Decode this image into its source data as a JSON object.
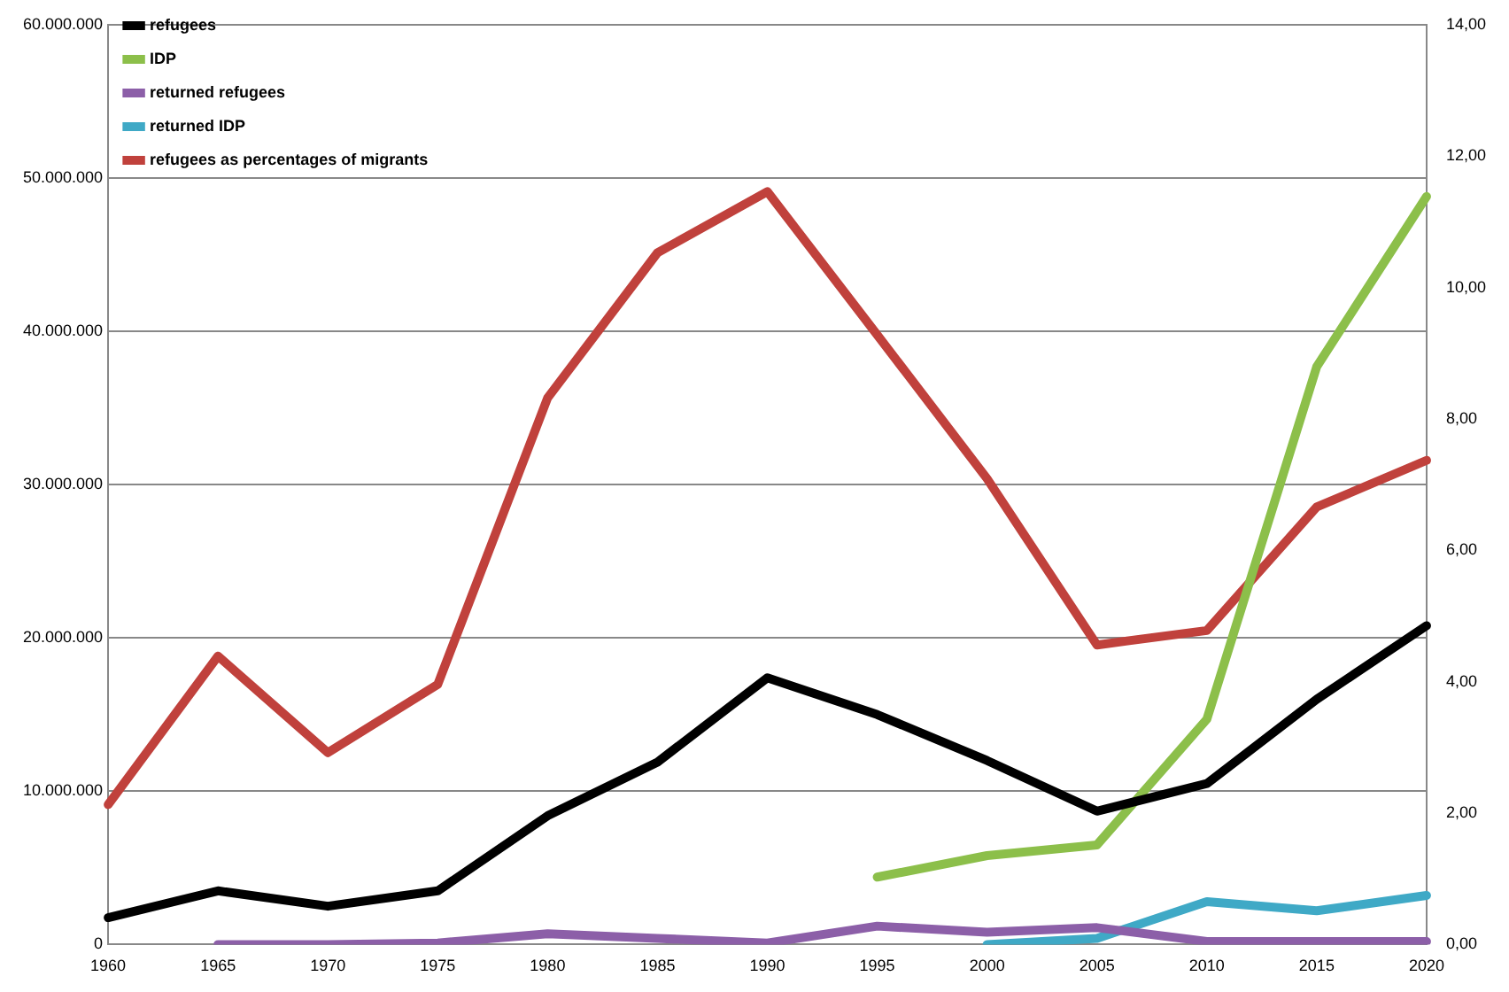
{
  "chart_data": {
    "type": "line",
    "categories": [
      "1960",
      "1965",
      "1970",
      "1975",
      "1980",
      "1985",
      "1990",
      "1995",
      "2000",
      "2005",
      "2010",
      "2015",
      "2020"
    ],
    "series": [
      {
        "name": "refugees",
        "color": "#000000",
        "values": [
          1750000,
          3500000,
          2500000,
          3500000,
          8400000,
          11900000,
          17400000,
          15000000,
          12000000,
          8700000,
          10500000,
          16000000,
          20800000
        ]
      },
      {
        "name": "IDP",
        "color": "#8cbf4a",
        "values": [
          null,
          null,
          null,
          null,
          null,
          null,
          null,
          4400000,
          5800000,
          6500000,
          14700000,
          37700000,
          48800000
        ]
      },
      {
        "name": "returned refugees",
        "color": "#8c5fa8",
        "values": [
          null,
          0,
          0,
          100000,
          700000,
          400000,
          100000,
          1200000,
          800000,
          1100000,
          200000,
          200000,
          200000
        ]
      },
      {
        "name": "returned IDP",
        "color": "#3fa9c6",
        "values": [
          null,
          null,
          null,
          null,
          null,
          null,
          null,
          null,
          0,
          400000,
          2800000,
          2200000,
          3200000
        ]
      },
      {
        "name": "refugees as percentages of migrants",
        "color": "#c0413c",
        "axis": "y2",
        "values": [
          2.13,
          4.39,
          2.92,
          3.96,
          8.32,
          10.53,
          11.46,
          9.28,
          7.09,
          4.56,
          4.78,
          6.66,
          7.37
        ]
      }
    ],
    "ylim": [
      0,
      60000000
    ],
    "yticks": [
      {
        "value": 0,
        "label": "0"
      },
      {
        "value": 10000000,
        "label": "10.000.000"
      },
      {
        "value": 20000000,
        "label": "20.000.000"
      },
      {
        "value": 30000000,
        "label": "30.000.000"
      },
      {
        "value": 40000000,
        "label": "40.000.000"
      },
      {
        "value": 50000000,
        "label": "50.000.000"
      },
      {
        "value": 60000000,
        "label": "60.000.000"
      }
    ],
    "y2lim": [
      0,
      14
    ],
    "y2ticks": [
      {
        "value": 0,
        "label": "0,00"
      },
      {
        "value": 2,
        "label": "2,00"
      },
      {
        "value": 4,
        "label": "4,00"
      },
      {
        "value": 6,
        "label": "6,00"
      },
      {
        "value": 8,
        "label": "8,00"
      },
      {
        "value": 10,
        "label": "10,00"
      },
      {
        "value": 12,
        "label": "12,00"
      },
      {
        "value": 14,
        "label": "14,00"
      }
    ],
    "grid": "y",
    "legend": "top left",
    "marker": "none",
    "line_style": "solid"
  }
}
